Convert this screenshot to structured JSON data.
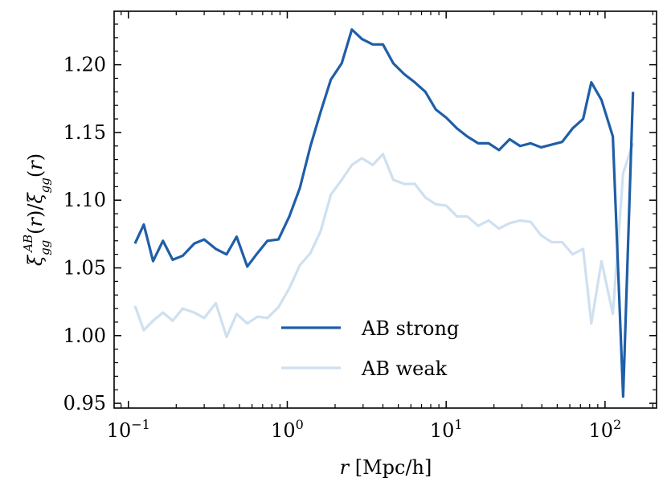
{
  "chart_data": {
    "type": "line",
    "xlabel": "r [Mpc/h]",
    "ylabel": "ξ_gg^AB(r)/ξ_gg(r)",
    "xscale": "log",
    "xlim": [
      0.0813,
      211.0
    ],
    "ylim": [
      0.9465,
      1.2395
    ],
    "x_ticks": [
      {
        "value": 0.1,
        "base": "10",
        "exp": "−1"
      },
      {
        "value": 1,
        "base": "10",
        "exp": "0"
      },
      {
        "value": 10,
        "base": "10",
        "exp": "1"
      },
      {
        "value": 100,
        "base": "10",
        "exp": "2"
      }
    ],
    "y_ticks": [
      {
        "value": 0.95,
        "label": "0.95"
      },
      {
        "value": 1.0,
        "label": "1.00"
      },
      {
        "value": 1.05,
        "label": "1.05"
      },
      {
        "value": 1.1,
        "label": "1.10"
      },
      {
        "value": 1.15,
        "label": "1.15"
      },
      {
        "value": 1.2,
        "label": "1.20"
      }
    ],
    "grid": false,
    "legend_position": "lower-center",
    "x": [
      0.11,
      0.125,
      0.143,
      0.165,
      0.19,
      0.22,
      0.26,
      0.3,
      0.355,
      0.415,
      0.48,
      0.56,
      0.65,
      0.75,
      0.88,
      1.03,
      1.2,
      1.4,
      1.62,
      1.88,
      2.2,
      2.55,
      2.95,
      3.45,
      4.0,
      4.65,
      5.45,
      6.35,
      7.4,
      8.6,
      10.0,
      11.7,
      13.6,
      15.9,
      18.5,
      21.5,
      25.1,
      29.2,
      34.0,
      39.6,
      46.1,
      53.7,
      62.5,
      72.8,
      82.0,
      95.0,
      112.0,
      130.0,
      150.0
    ],
    "series": [
      {
        "name": "AB strong",
        "color": "#1f5ea8",
        "values": [
          1.068,
          1.082,
          1.055,
          1.07,
          1.056,
          1.059,
          1.068,
          1.071,
          1.064,
          1.06,
          1.073,
          1.051,
          1.061,
          1.07,
          1.071,
          1.088,
          1.109,
          1.14,
          1.165,
          1.189,
          1.201,
          1.226,
          1.219,
          1.215,
          1.215,
          1.201,
          1.193,
          1.187,
          1.18,
          1.167,
          1.161,
          1.153,
          1.147,
          1.142,
          1.142,
          1.137,
          1.145,
          1.14,
          1.142,
          1.139,
          1.141,
          1.143,
          1.153,
          1.16,
          1.187,
          1.174,
          1.147,
          0.955,
          1.18
        ]
      },
      {
        "name": "AB weak",
        "color": "#cfe0ef",
        "values": [
          1.022,
          1.004,
          1.011,
          1.017,
          1.011,
          1.02,
          1.017,
          1.013,
          1.024,
          0.999,
          1.016,
          1.009,
          1.014,
          1.013,
          1.021,
          1.035,
          1.052,
          1.061,
          1.077,
          1.104,
          1.115,
          1.126,
          1.131,
          1.126,
          1.134,
          1.115,
          1.112,
          1.112,
          1.102,
          1.097,
          1.096,
          1.088,
          1.088,
          1.081,
          1.085,
          1.079,
          1.083,
          1.085,
          1.084,
          1.074,
          1.069,
          1.069,
          1.06,
          1.064,
          1.009,
          1.055,
          1.016,
          1.12,
          1.142
        ]
      }
    ]
  }
}
